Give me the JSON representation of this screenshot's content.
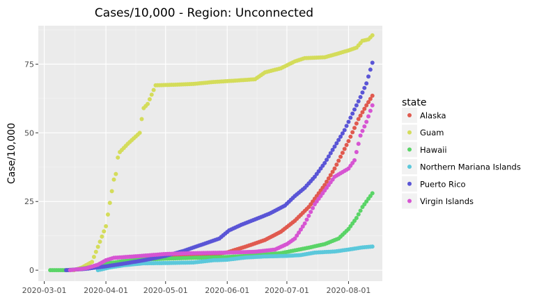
{
  "chart_data": {
    "type": "scatter",
    "title": "Cases/10,000 - Region: Unconnected",
    "xlabel": "",
    "ylabel": "Case/10,000",
    "x_type": "date",
    "xlim": [
      "2020-02-27",
      "2020-08-18"
    ],
    "ylim": [
      -4,
      89
    ],
    "x_ticks": [
      "2020-03-01",
      "2020-04-01",
      "2020-05-01",
      "2020-06-01",
      "2020-07-01",
      "2020-08-01"
    ],
    "y_ticks": [
      0,
      25,
      50,
      75
    ],
    "grid": true,
    "legend_title": "state",
    "legend_position": "right",
    "series": [
      {
        "name": "Alaska",
        "color": "#e05a4f",
        "points": [
          [
            "2020-03-12",
            0
          ],
          [
            "2020-03-20",
            0.4
          ],
          [
            "2020-03-28",
            1.3
          ],
          [
            "2020-04-05",
            2.6
          ],
          [
            "2020-04-15",
            3.6
          ],
          [
            "2020-04-25",
            4.4
          ],
          [
            "2020-05-05",
            4.8
          ],
          [
            "2020-05-15",
            5.2
          ],
          [
            "2020-05-25",
            5.7
          ],
          [
            "2020-06-01",
            6.5
          ],
          [
            "2020-06-10",
            8.5
          ],
          [
            "2020-06-20",
            11
          ],
          [
            "2020-06-28",
            14
          ],
          [
            "2020-07-05",
            18
          ],
          [
            "2020-07-12",
            23
          ],
          [
            "2020-07-20",
            31
          ],
          [
            "2020-07-25",
            37
          ],
          [
            "2020-08-01",
            47
          ],
          [
            "2020-08-06",
            55
          ],
          [
            "2020-08-10",
            60
          ],
          [
            "2020-08-13",
            63.5
          ]
        ]
      },
      {
        "name": "Guam",
        "color": "#d4dc5a",
        "points": [
          [
            "2020-03-16",
            0
          ],
          [
            "2020-03-20",
            1
          ],
          [
            "2020-03-25",
            3
          ],
          [
            "2020-03-28",
            8.5
          ],
          [
            "2020-04-01",
            16
          ],
          [
            "2020-04-03",
            24.5
          ],
          [
            "2020-04-05",
            33
          ],
          [
            "2020-04-06",
            35
          ],
          [
            "2020-04-07",
            41
          ],
          [
            "2020-04-08",
            43
          ],
          [
            "2020-04-12",
            46
          ],
          [
            "2020-04-15",
            48
          ],
          [
            "2020-04-18",
            50
          ],
          [
            "2020-04-19",
            55
          ],
          [
            "2020-04-20",
            59
          ],
          [
            "2020-04-22",
            60.5
          ],
          [
            "2020-04-26",
            67.3
          ],
          [
            "2020-05-05",
            67.5
          ],
          [
            "2020-05-15",
            67.8
          ],
          [
            "2020-05-25",
            68.5
          ],
          [
            "2020-06-05",
            69
          ],
          [
            "2020-06-15",
            69.5
          ],
          [
            "2020-06-20",
            72
          ],
          [
            "2020-06-28",
            73.5
          ],
          [
            "2020-07-05",
            76
          ],
          [
            "2020-07-10",
            77.2
          ],
          [
            "2020-07-20",
            77.5
          ],
          [
            "2020-07-25",
            78.5
          ],
          [
            "2020-08-01",
            80
          ],
          [
            "2020-08-05",
            81
          ],
          [
            "2020-08-08",
            83.5
          ],
          [
            "2020-08-11",
            84
          ],
          [
            "2020-08-13",
            85.5
          ]
        ]
      },
      {
        "name": "Hawaii",
        "color": "#5ad467",
        "points": [
          [
            "2020-03-04",
            0
          ],
          [
            "2020-03-14",
            0
          ],
          [
            "2020-03-22",
            0.8
          ],
          [
            "2020-04-01",
            2.4
          ],
          [
            "2020-04-10",
            3.3
          ],
          [
            "2020-04-20",
            3.9
          ],
          [
            "2020-05-01",
            4.2
          ],
          [
            "2020-05-15",
            4.5
          ],
          [
            "2020-06-01",
            4.8
          ],
          [
            "2020-06-15",
            5.4
          ],
          [
            "2020-06-28",
            6.2
          ],
          [
            "2020-07-05",
            7.2
          ],
          [
            "2020-07-12",
            8.2
          ],
          [
            "2020-07-20",
            9.5
          ],
          [
            "2020-07-27",
            11.5
          ],
          [
            "2020-08-01",
            15
          ],
          [
            "2020-08-05",
            19
          ],
          [
            "2020-08-08",
            23
          ],
          [
            "2020-08-11",
            26
          ],
          [
            "2020-08-13",
            28
          ]
        ]
      },
      {
        "name": "Northern Mariana Islands",
        "color": "#5bc8db",
        "points": [
          [
            "2020-03-28",
            0
          ],
          [
            "2020-04-03",
            1
          ],
          [
            "2020-04-10",
            1.8
          ],
          [
            "2020-04-20",
            2.5
          ],
          [
            "2020-05-01",
            2.6
          ],
          [
            "2020-05-15",
            2.8
          ],
          [
            "2020-05-25",
            3.6
          ],
          [
            "2020-06-01",
            3.8
          ],
          [
            "2020-06-10",
            4.6
          ],
          [
            "2020-06-20",
            5
          ],
          [
            "2020-07-01",
            5.2
          ],
          [
            "2020-07-08",
            5.5
          ],
          [
            "2020-07-15",
            6.4
          ],
          [
            "2020-07-25",
            6.8
          ],
          [
            "2020-08-01",
            7.5
          ],
          [
            "2020-08-08",
            8.3
          ],
          [
            "2020-08-13",
            8.6
          ]
        ]
      },
      {
        "name": "Puerto Rico",
        "color": "#5a55d6",
        "points": [
          [
            "2020-03-12",
            0
          ],
          [
            "2020-03-22",
            0.5
          ],
          [
            "2020-04-01",
            1.4
          ],
          [
            "2020-04-10",
            2.4
          ],
          [
            "2020-04-20",
            3.6
          ],
          [
            "2020-05-01",
            5.2
          ],
          [
            "2020-05-10",
            7
          ],
          [
            "2020-05-20",
            9.5
          ],
          [
            "2020-05-28",
            11.5
          ],
          [
            "2020-06-02",
            14.5
          ],
          [
            "2020-06-08",
            16.5
          ],
          [
            "2020-06-15",
            18.5
          ],
          [
            "2020-06-22",
            20.5
          ],
          [
            "2020-06-30",
            23.5
          ],
          [
            "2020-07-05",
            27
          ],
          [
            "2020-07-10",
            30
          ],
          [
            "2020-07-15",
            34
          ],
          [
            "2020-07-20",
            39
          ],
          [
            "2020-07-25",
            45
          ],
          [
            "2020-07-30",
            51
          ],
          [
            "2020-08-03",
            57
          ],
          [
            "2020-08-07",
            63
          ],
          [
            "2020-08-10",
            68
          ],
          [
            "2020-08-13",
            75.5
          ]
        ]
      },
      {
        "name": "Virgin Islands",
        "color": "#d655d2",
        "points": [
          [
            "2020-03-14",
            0
          ],
          [
            "2020-03-22",
            0.7
          ],
          [
            "2020-03-28",
            2
          ],
          [
            "2020-04-01",
            3.6
          ],
          [
            "2020-04-05",
            4.5
          ],
          [
            "2020-04-15",
            5
          ],
          [
            "2020-05-01",
            5.9
          ],
          [
            "2020-05-15",
            6.2
          ],
          [
            "2020-06-01",
            6.4
          ],
          [
            "2020-06-15",
            6.7
          ],
          [
            "2020-06-25",
            7.5
          ],
          [
            "2020-07-01",
            9.5
          ],
          [
            "2020-07-05",
            11.5
          ],
          [
            "2020-07-10",
            17
          ],
          [
            "2020-07-15",
            24
          ],
          [
            "2020-07-20",
            29
          ],
          [
            "2020-07-25",
            34
          ],
          [
            "2020-08-01",
            37
          ],
          [
            "2020-08-04",
            40
          ],
          [
            "2020-08-07",
            49
          ],
          [
            "2020-08-10",
            54
          ],
          [
            "2020-08-13",
            60
          ]
        ]
      }
    ]
  }
}
